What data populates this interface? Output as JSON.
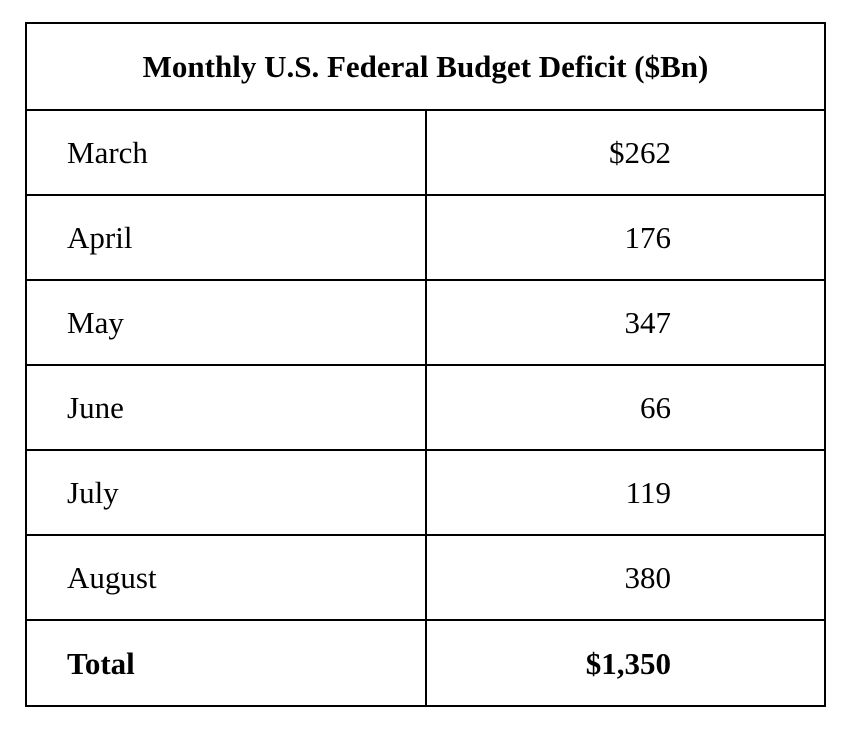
{
  "chart_data": {
    "type": "table",
    "title": "Monthly U.S. Federal Budget Deficit ($Bn)",
    "rows": [
      {
        "label": "March",
        "value": "$262"
      },
      {
        "label": "April",
        "value": "176"
      },
      {
        "label": "May",
        "value": "347"
      },
      {
        "label": "June",
        "value": "66"
      },
      {
        "label": "July",
        "value": "119"
      },
      {
        "label": "August",
        "value": "380"
      }
    ],
    "total": {
      "label": "Total",
      "value": "$1,350"
    }
  }
}
